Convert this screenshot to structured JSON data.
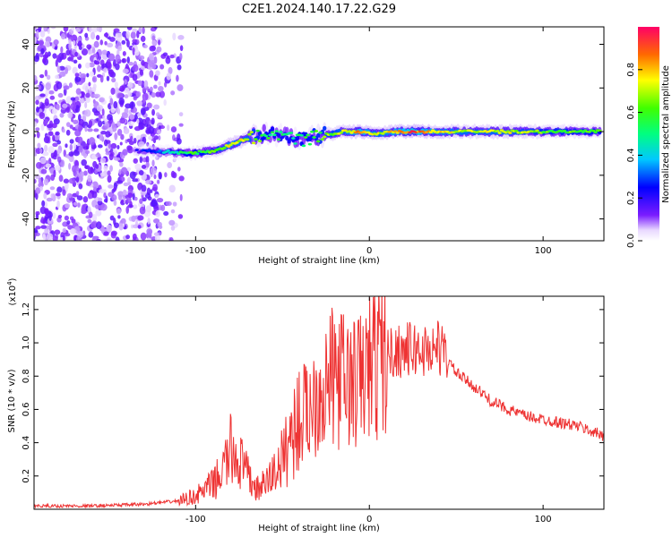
{
  "title": "C2E1.2024.140.17.22.G29",
  "colors": {
    "snr_line": "#ee3333",
    "axis": "#000000",
    "background": "#ffffff"
  },
  "chart_data": [
    {
      "type": "heatmap",
      "xlabel": "Height of straight line (km)",
      "ylabel": "Frequency (Hz)",
      "xlim": [
        -193,
        135
      ],
      "ylim": [
        -50,
        48
      ],
      "xticks": [
        -100,
        0,
        100
      ],
      "yticks": [
        -40,
        -20,
        0,
        20,
        40
      ],
      "colorbar": {
        "label": "Normalized spectral amplitude",
        "range": [
          0.0,
          1.0
        ],
        "ticks": [
          "0.0",
          "0.2",
          "0.4",
          "0.6",
          "0.8"
        ]
      },
      "signal_track": [
        {
          "x": -135,
          "f": -9,
          "amp": 0.15
        },
        {
          "x": -120,
          "f": -9,
          "amp": 0.35
        },
        {
          "x": -105,
          "f": -10,
          "amp": 0.55
        },
        {
          "x": -90,
          "f": -9,
          "amp": 0.6
        },
        {
          "x": -80,
          "f": -6,
          "amp": 0.75
        },
        {
          "x": -70,
          "f": -3,
          "amp": 0.7
        },
        {
          "x": -60,
          "f": -1,
          "amp": 0.55
        },
        {
          "x": -50,
          "f": -2,
          "amp": 0.5
        },
        {
          "x": -40,
          "f": -4,
          "amp": 0.55
        },
        {
          "x": -30,
          "f": -2,
          "amp": 0.6
        },
        {
          "x": -15,
          "f": 0,
          "amp": 0.7
        },
        {
          "x": -5,
          "f": 0,
          "amp": 0.85
        },
        {
          "x": 5,
          "f": -1,
          "amp": 0.7
        },
        {
          "x": 15,
          "f": 0,
          "amp": 0.8
        },
        {
          "x": 25,
          "f": 0,
          "amp": 0.9
        },
        {
          "x": 40,
          "f": 0,
          "amp": 0.75
        },
        {
          "x": 60,
          "f": 0,
          "amp": 0.7
        },
        {
          "x": 80,
          "f": 0,
          "amp": 0.72
        },
        {
          "x": 100,
          "f": 0,
          "amp": 0.62
        },
        {
          "x": 120,
          "f": 0,
          "amp": 0.6
        },
        {
          "x": 133,
          "f": 0,
          "amp": 0.58
        }
      ],
      "noise_region": {
        "x_start": -193,
        "x_end": -108
      }
    },
    {
      "type": "line",
      "xlabel": "Height of straight line (km)",
      "ylabel": "SNR (10 * v/v)",
      "y_multiplier": "(x10",
      "y_exponent": "4",
      "y_multiplier_close": ")",
      "xlim": [
        -193,
        135
      ],
      "ylim": [
        0.0,
        1.28
      ],
      "xticks": [
        -100,
        0,
        100
      ],
      "yticks": [
        0.2,
        0.4,
        0.6,
        0.8,
        1.0,
        1.2
      ],
      "series": [
        {
          "x": [
            -193,
            -160,
            -130,
            -120,
            -110,
            -100,
            -90,
            -85,
            -80,
            -75,
            -70,
            -65,
            -60,
            -55,
            -50,
            -45,
            -40,
            -35,
            -30,
            -25,
            -20,
            -15,
            -10,
            -5,
            0,
            5,
            10,
            15,
            20,
            25,
            30,
            35,
            40,
            45,
            50,
            55,
            60,
            70,
            80,
            90,
            100,
            110,
            120,
            130,
            135
          ],
          "y": [
            0.02,
            0.02,
            0.03,
            0.04,
            0.05,
            0.08,
            0.15,
            0.22,
            0.35,
            0.3,
            0.2,
            0.12,
            0.15,
            0.22,
            0.3,
            0.45,
            0.55,
            0.6,
            0.7,
            0.75,
            0.8,
            0.78,
            0.75,
            0.78,
            0.85,
            0.9,
            0.93,
            0.95,
            0.96,
            0.96,
            0.95,
            0.96,
            0.98,
            0.9,
            0.82,
            0.78,
            0.74,
            0.65,
            0.6,
            0.56,
            0.54,
            0.52,
            0.5,
            0.46,
            0.44
          ]
        }
      ]
    }
  ]
}
